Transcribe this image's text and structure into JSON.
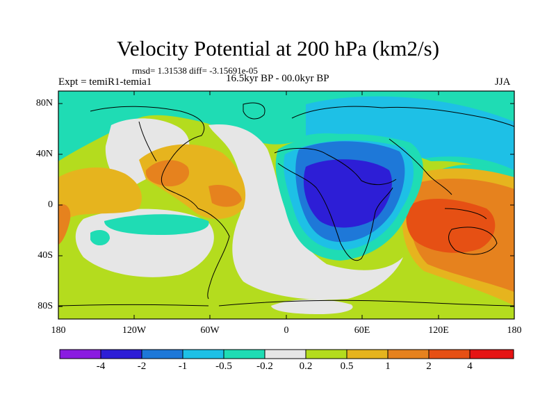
{
  "title": "Velocity Potential at 200 hPa (km2/s)",
  "stats": "rmsd= 1.31538 diff= -3.15691e-05",
  "experiment": "Expt = temiR1-temia1",
  "period": "16.5kyr BP - 00.0kyr BP",
  "season": "JJA",
  "y_ticks": [
    "80N",
    "40N",
    "0",
    "40S",
    "80S"
  ],
  "x_ticks": [
    "180",
    "120W",
    "60W",
    "0",
    "60E",
    "120E",
    "180"
  ],
  "colorbar": {
    "labels": [
      "-4",
      "-2",
      "-1",
      "-0.5",
      "-0.2",
      "0.2",
      "0.5",
      "1",
      "2",
      "4"
    ],
    "colors": [
      "#8a1be0",
      "#2d1ed6",
      "#1e78d8",
      "#1ec0e6",
      "#1fdcb4",
      "#e6e6e6",
      "#b4dc1e",
      "#e6b41e",
      "#e6821e",
      "#e65014",
      "#e61414"
    ]
  }
}
